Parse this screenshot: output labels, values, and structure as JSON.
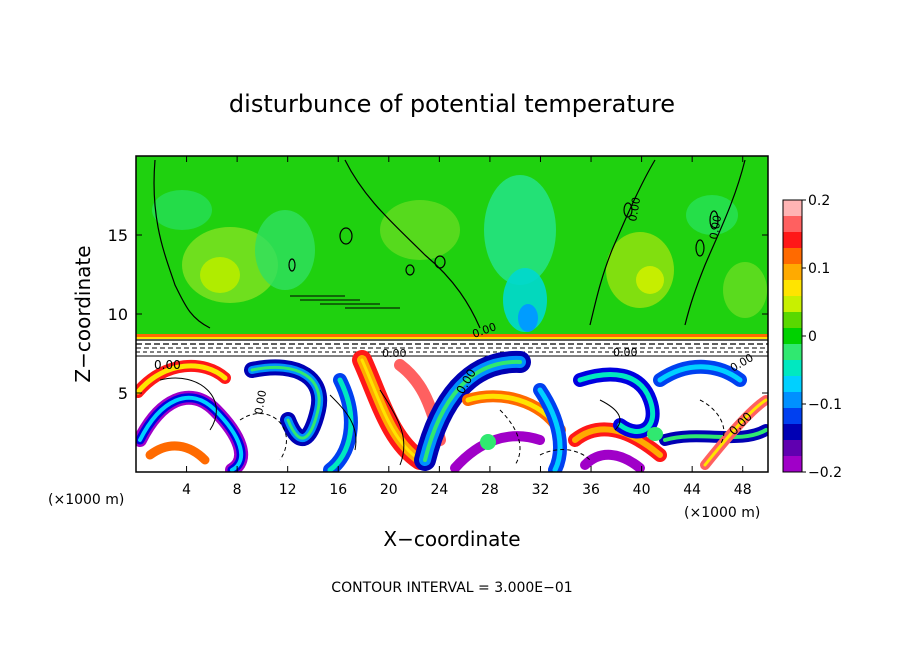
{
  "chart_data": {
    "type": "heatmap",
    "title": "disturbunce of potential temperature",
    "xlabel": "X−coordinate",
    "ylabel": "Z−coordinate",
    "x_unit_left": "(×1000 m)",
    "x_unit_right": "(×1000 m)",
    "xlim": [
      0,
      50
    ],
    "ylim": [
      0,
      20
    ],
    "x_ticks": [
      4,
      8,
      12,
      16,
      20,
      24,
      28,
      32,
      36,
      40,
      44,
      48
    ],
    "x_tick_labels": [
      "4",
      "8",
      "12",
      "16",
      "20",
      "24",
      "28",
      "32",
      "36",
      "40",
      "44",
      "48"
    ],
    "y_ticks": [
      5,
      10,
      15
    ],
    "y_tick_labels": [
      "5",
      "10",
      "15"
    ],
    "colorbar": {
      "range": [
        -0.2,
        0.2
      ],
      "ticks": [
        0.2,
        0.1,
        0,
        -0.1,
        -0.2
      ],
      "tick_labels": [
        "0.2",
        "0.1",
        "0",
        "−0.1",
        "−0.2"
      ],
      "colors": [
        "#ffb4b4",
        "#ff6060",
        "#ff1818",
        "#ff6a00",
        "#ffaa00",
        "#ffe400",
        "#c8f000",
        "#5ad800",
        "#00d200",
        "#30e870",
        "#00e8c0",
        "#00d0ff",
        "#0090ff",
        "#0040f0",
        "#0000b4",
        "#6000b0",
        "#a000c8"
      ]
    },
    "contour_labels": [
      "0.00",
      "0.00",
      "0.00",
      "0.00",
      "0.00",
      "0.00",
      "0.00",
      "0.00",
      "0.00",
      "0.00"
    ],
    "footer": "CONTOUR INTERVAL = 3.000E−01"
  }
}
